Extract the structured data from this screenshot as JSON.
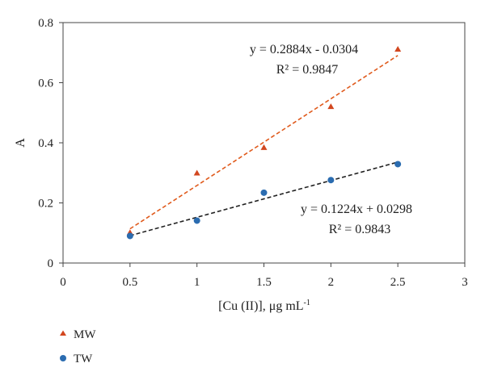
{
  "chart_data": {
    "type": "scatter",
    "xlabel": "[Cu (II)], μg mL",
    "xlabel_superscript": "-1",
    "ylabel": "A",
    "xlim": [
      0,
      3
    ],
    "ylim": [
      0,
      0.8
    ],
    "x_ticks": [
      "0",
      "0.5",
      "1",
      "1.5",
      "2",
      "2.5",
      "3"
    ],
    "y_ticks": [
      "0",
      "0.2",
      "0.4",
      "0.6",
      "0.8"
    ],
    "grid": false,
    "legend_placement": "bottom-left",
    "series": [
      {
        "name": "MW",
        "marker": "triangle",
        "color": "#d2471f",
        "x": [
          0.5,
          1,
          1.5,
          2,
          2.5
        ],
        "y": [
          0.1,
          0.298,
          0.383,
          0.519,
          0.71
        ],
        "trendline": {
          "slope": 0.2884,
          "intercept": -0.0304,
          "color": "#e05a1c",
          "equation": "y = 0.2884x - 0.0304",
          "r_squared": "R² = 0.9847"
        }
      },
      {
        "name": "TW",
        "marker": "circle",
        "color": "#2b6cb0",
        "x": [
          0.5,
          1,
          1.5,
          2,
          2.5
        ],
        "y": [
          0.09,
          0.141,
          0.234,
          0.276,
          0.329
        ],
        "trendline": {
          "slope": 0.1224,
          "intercept": 0.0298,
          "color": "#222222",
          "equation": "y = 0.1224x + 0.0298",
          "r_squared": "R² = 0.9843"
        }
      }
    ]
  }
}
